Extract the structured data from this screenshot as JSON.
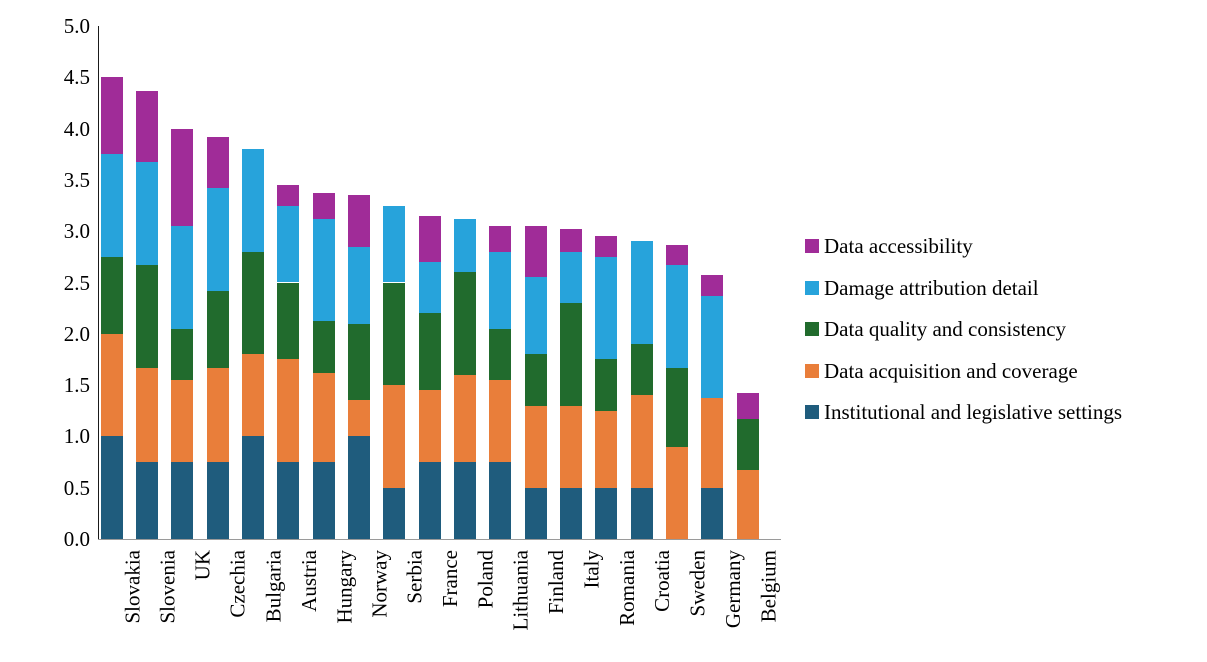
{
  "chart_data": {
    "type": "bar",
    "stacked": true,
    "title": "",
    "xlabel": "",
    "ylabel": "",
    "ylim": [
      0,
      5
    ],
    "yticks": [
      "0.0",
      "0.5",
      "1.0",
      "1.5",
      "2.0",
      "2.5",
      "3.0",
      "3.5",
      "4.0",
      "4.5",
      "5.0"
    ],
    "grid": false,
    "legend_position": "right",
    "categories": [
      "Slovakia",
      "Slovenia",
      "UK",
      "Czechia",
      "Bulgaria",
      "Austria",
      "Hungary",
      "Norway",
      "Serbia",
      "France",
      "Poland",
      "Lithuania",
      "Finland",
      "Italy",
      "Romania",
      "Croatia",
      "Sweden",
      "Germany",
      "Belgium"
    ],
    "series": [
      {
        "name": "Institutional and legislative settings",
        "color": "#1F5C7D",
        "values": [
          1.0,
          0.75,
          0.75,
          0.75,
          1.0,
          0.75,
          0.75,
          1.0,
          0.5,
          0.75,
          0.75,
          0.75,
          0.5,
          0.5,
          0.5,
          0.5,
          0.0,
          0.5,
          0.0
        ]
      },
      {
        "name": "Data acquisition and coverage",
        "color": "#E97E3A",
        "values": [
          1.0,
          0.92,
          0.8,
          0.92,
          0.8,
          1.0,
          0.87,
          0.35,
          1.0,
          0.7,
          0.85,
          0.8,
          0.8,
          0.8,
          0.75,
          0.9,
          0.9,
          0.87,
          0.67
        ]
      },
      {
        "name": "Data quality and consistency",
        "color": "#216B2D",
        "values": [
          0.75,
          1.0,
          0.5,
          0.75,
          1.0,
          0.75,
          0.5,
          0.75,
          1.0,
          0.75,
          1.0,
          0.5,
          0.5,
          1.0,
          0.5,
          0.5,
          0.77,
          0.0,
          0.5
        ]
      },
      {
        "name": "Damage attribution detail",
        "color": "#27A3DB",
        "values": [
          1.0,
          1.0,
          1.0,
          1.0,
          1.0,
          0.75,
          1.0,
          0.75,
          0.75,
          0.5,
          0.52,
          0.75,
          0.75,
          0.5,
          1.0,
          1.0,
          1.0,
          1.0,
          0.0
        ]
      },
      {
        "name": "Data accessibility",
        "color": "#A02C98",
        "values": [
          0.75,
          0.7,
          0.95,
          0.5,
          0.0,
          0.2,
          0.25,
          0.5,
          0.0,
          0.45,
          0.0,
          0.25,
          0.5,
          0.22,
          0.2,
          0.0,
          0.2,
          0.2,
          0.25
        ]
      }
    ],
    "totals": [
      4.5,
      4.37,
      4.0,
      3.92,
      3.8,
      3.45,
      3.37,
      3.35,
      3.25,
      3.15,
      3.12,
      3.05,
      3.05,
      3.02,
      2.95,
      2.9,
      2.87,
      2.57,
      1.42
    ]
  },
  "legend": {
    "order_top_to_bottom": [
      "Data accessibility",
      "Damage attribution detail",
      "Data quality and consistency",
      "Data acquisition and coverage",
      "Institutional and legislative settings"
    ]
  }
}
